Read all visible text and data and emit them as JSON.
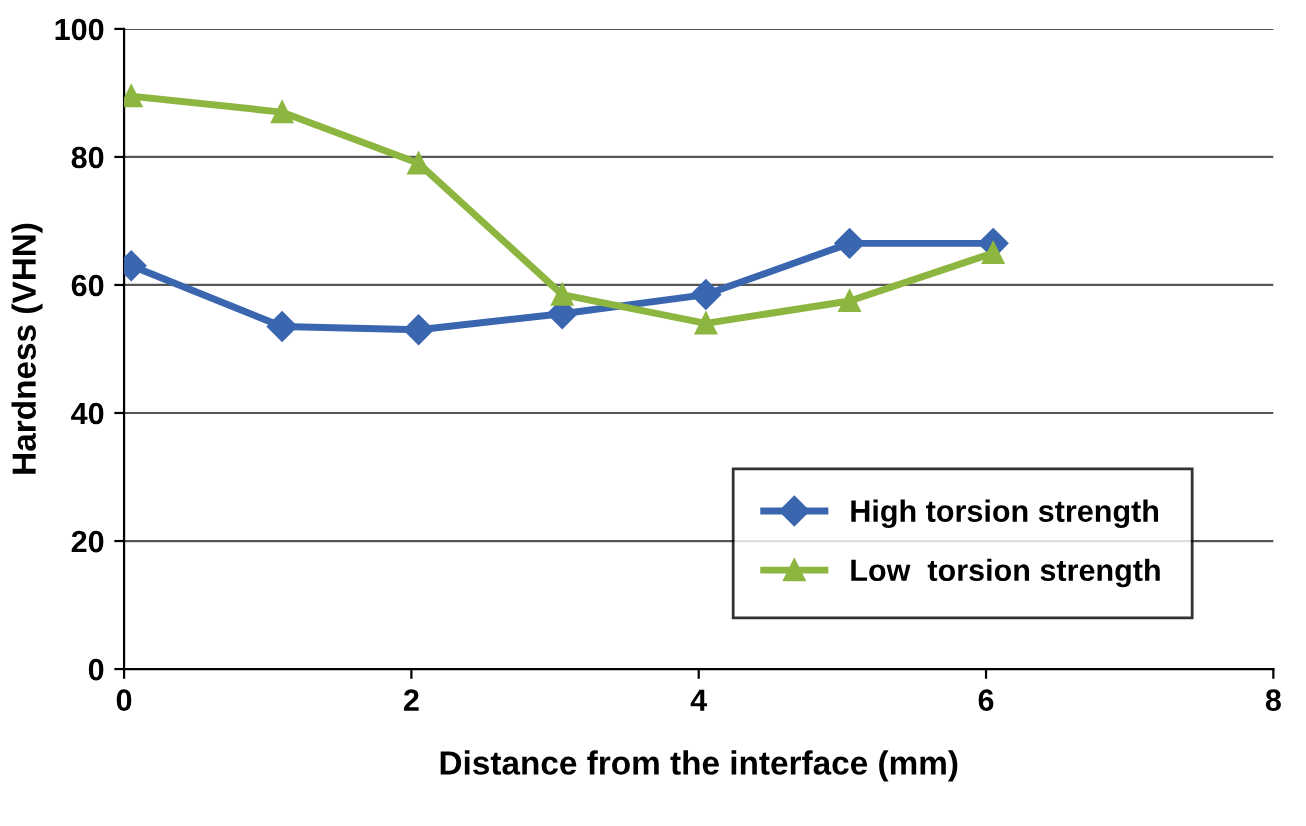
{
  "chart_data": {
    "type": "line",
    "xlabel": "Distance from the interface (mm)",
    "ylabel": "Hardness (VHN)",
    "x": [
      0.05,
      1.1,
      2.05,
      3.05,
      4.05,
      5.05,
      6.05
    ],
    "series": [
      {
        "name": "High torsion strength",
        "color": "#3a66b0",
        "marker": "diamond",
        "values": [
          63,
          53.5,
          53,
          55.5,
          58.5,
          66.5,
          66.5
        ]
      },
      {
        "name": "Low  torsion strength",
        "color": "#8db640",
        "marker": "triangle",
        "values": [
          89.5,
          87,
          79,
          58.5,
          54,
          57.5,
          65
        ]
      }
    ],
    "xlim": [
      0,
      8
    ],
    "xticks": [
      0,
      2,
      4,
      6,
      8
    ],
    "ylim": [
      0,
      100
    ],
    "yticks": [
      0,
      20,
      40,
      60,
      80,
      100
    ],
    "grid": "y",
    "legend": "bottom right",
    "line_style": "solid"
  }
}
